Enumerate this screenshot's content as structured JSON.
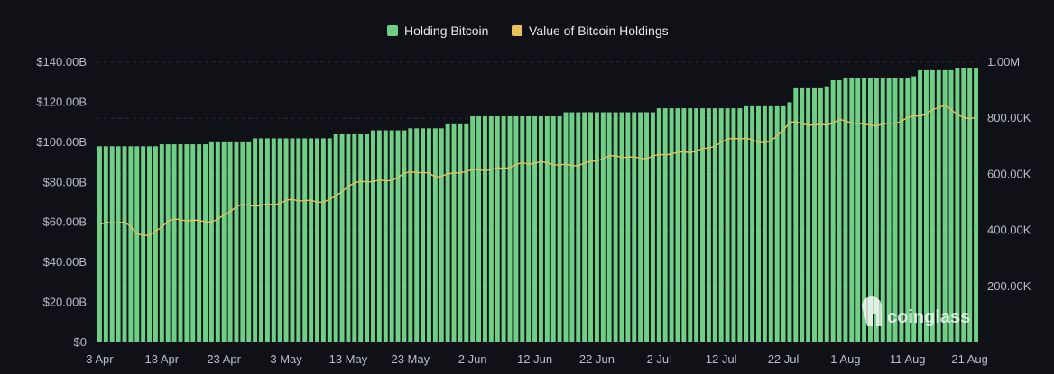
{
  "chart_data": {
    "type": "bar",
    "legend": {
      "placement": "top-center",
      "items": [
        {
          "label": "Holding Bitcoin",
          "color": "#6fcf86"
        },
        {
          "label": "Value of Bitcoin Holdings",
          "color": "#e6c15c"
        }
      ]
    },
    "left_axis": {
      "ylim": [
        0,
        140
      ],
      "ticks": [
        {
          "value": 0,
          "label": "$0"
        },
        {
          "value": 20,
          "label": "$20.00B"
        },
        {
          "value": 40,
          "label": "$40.00B"
        },
        {
          "value": 60,
          "label": "$60.00B"
        },
        {
          "value": 80,
          "label": "$80.00B"
        },
        {
          "value": 100,
          "label": "$100.00B"
        },
        {
          "value": 120,
          "label": "$120.00B"
        },
        {
          "value": 140,
          "label": "$140.00B"
        }
      ]
    },
    "right_axis": {
      "ylim": [
        0,
        1000000
      ],
      "ticks": [
        {
          "value": 200000,
          "label": "200.00K"
        },
        {
          "value": 400000,
          "label": "400.00K"
        },
        {
          "value": 600000,
          "label": "600.00K"
        },
        {
          "value": 800000,
          "label": "800.00K"
        },
        {
          "value": 1000000,
          "label": "1.00M"
        }
      ]
    },
    "x_axis": {
      "ticks": [
        {
          "index": 0,
          "label": "3 Apr"
        },
        {
          "index": 10,
          "label": "13 Apr"
        },
        {
          "index": 20,
          "label": "23 Apr"
        },
        {
          "index": 30,
          "label": "3 May"
        },
        {
          "index": 40,
          "label": "13 May"
        },
        {
          "index": 50,
          "label": "23 May"
        },
        {
          "index": 60,
          "label": "2 Jun"
        },
        {
          "index": 70,
          "label": "12 Jun"
        },
        {
          "index": 80,
          "label": "22 Jun"
        },
        {
          "index": 90,
          "label": "2 Jul"
        },
        {
          "index": 100,
          "label": "12 Jul"
        },
        {
          "index": 110,
          "label": "22 Jul"
        },
        {
          "index": 120,
          "label": "1 Aug"
        },
        {
          "index": 130,
          "label": "11 Aug"
        },
        {
          "index": 140,
          "label": "21 Aug"
        }
      ]
    },
    "grid": true,
    "series": [
      {
        "name": "Holding Bitcoin",
        "axis": "left",
        "keypoints": [
          [
            0,
            98
          ],
          [
            10,
            99
          ],
          [
            18,
            100
          ],
          [
            25,
            102
          ],
          [
            38,
            104
          ],
          [
            44,
            106
          ],
          [
            50,
            107
          ],
          [
            56,
            109
          ],
          [
            60,
            113
          ],
          [
            75,
            115
          ],
          [
            90,
            117
          ],
          [
            104,
            118
          ],
          [
            111,
            120
          ],
          [
            112,
            127
          ],
          [
            117,
            128
          ],
          [
            118,
            131
          ],
          [
            120,
            132
          ],
          [
            131,
            133
          ],
          [
            132,
            136
          ],
          [
            138,
            137
          ],
          [
            141,
            137
          ]
        ]
      },
      {
        "name": "Value of Bitcoin Holdings",
        "axis": "right",
        "keypoints": [
          [
            0,
            420000
          ],
          [
            4,
            425000
          ],
          [
            6,
            395000
          ],
          [
            8,
            385000
          ],
          [
            11,
            430000
          ],
          [
            19,
            440000
          ],
          [
            22,
            480000
          ],
          [
            30,
            505000
          ],
          [
            35,
            500000
          ],
          [
            38,
            525000
          ],
          [
            40,
            560000
          ],
          [
            46,
            580000
          ],
          [
            50,
            610000
          ],
          [
            54,
            590000
          ],
          [
            58,
            615000
          ],
          [
            63,
            610000
          ],
          [
            68,
            645000
          ],
          [
            74,
            630000
          ],
          [
            83,
            660000
          ],
          [
            93,
            670000
          ],
          [
            98,
            700000
          ],
          [
            102,
            725000
          ],
          [
            108,
            720000
          ],
          [
            111,
            780000
          ],
          [
            115,
            775000
          ],
          [
            119,
            795000
          ],
          [
            123,
            770000
          ],
          [
            128,
            790000
          ],
          [
            133,
            810000
          ],
          [
            136,
            855000
          ],
          [
            138,
            815000
          ],
          [
            140,
            800000
          ],
          [
            141,
            795000
          ]
        ]
      }
    ],
    "watermark": "coinglass"
  }
}
